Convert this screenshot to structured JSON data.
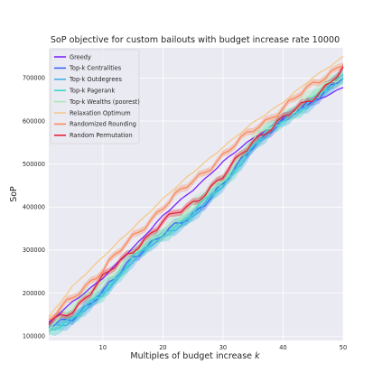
{
  "chart_data": {
    "type": "line",
    "title": "SoP objective for custom bailouts with budget increase rate 10000",
    "xlabel": "Multiples of budget increase k",
    "ylabel": "SoP",
    "xlim": [
      1,
      50
    ],
    "ylim": [
      90000,
      770000
    ],
    "xticks": [
      10,
      20,
      30,
      40,
      50
    ],
    "yticks": [
      100000,
      200000,
      300000,
      400000,
      500000,
      600000,
      700000
    ],
    "ytick_labels": [
      "100000",
      "200000",
      "300000",
      "400000",
      "500000",
      "600000",
      "700000"
    ],
    "grid": true,
    "legend_position": "top-left",
    "series": [
      {
        "name": "Greedy",
        "color": "#7b25ff",
        "band": 0,
        "x": [
          1,
          5,
          10,
          15,
          20,
          25,
          30,
          35,
          40,
          45,
          50
        ],
        "y": [
          130000,
          180000,
          235000,
          305000,
          380000,
          440000,
          505000,
          560000,
          605000,
          645000,
          678000
        ]
      },
      {
        "name": "Top-k Centralities",
        "color": "#3d6af5",
        "band": 10000,
        "x": [
          1,
          5,
          10,
          15,
          20,
          25,
          30,
          35,
          40,
          45,
          50
        ],
        "y": [
          120000,
          145000,
          200000,
          285000,
          335000,
          385000,
          450000,
          545000,
          600000,
          650000,
          700000
        ]
      },
      {
        "name": "Top-k Outdegrees",
        "color": "#3fb1e8",
        "band": 12000,
        "x": [
          1,
          5,
          10,
          15,
          20,
          25,
          30,
          35,
          40,
          45,
          50
        ],
        "y": [
          118000,
          140000,
          195000,
          280000,
          330000,
          382000,
          448000,
          542000,
          598000,
          648000,
          698000
        ]
      },
      {
        "name": "Top-k Pagerank",
        "color": "#3dd6c9",
        "band": 14000,
        "x": [
          1,
          5,
          10,
          15,
          20,
          25,
          30,
          35,
          40,
          45,
          50
        ],
        "y": [
          116000,
          142000,
          198000,
          283000,
          333000,
          388000,
          452000,
          546000,
          602000,
          652000,
          702000
        ]
      },
      {
        "name": "Top-k Wealths (poorest)",
        "color": "#a8e8b8",
        "band": 15000,
        "x": [
          1,
          5,
          10,
          15,
          20,
          25,
          30,
          35,
          40,
          45,
          50
        ],
        "y": [
          125000,
          165000,
          225000,
          290000,
          345000,
          400000,
          465000,
          555000,
          610000,
          660000,
          708000
        ]
      },
      {
        "name": "Relaxation Optimum",
        "color": "#f6c88a",
        "band": 0,
        "x": [
          1,
          5,
          10,
          15,
          20,
          25,
          30,
          35,
          40,
          45,
          50
        ],
        "y": [
          145000,
          215000,
          285000,
          350000,
          420000,
          480000,
          540000,
          595000,
          645000,
          700000,
          750000
        ]
      },
      {
        "name": "Randomized Rounding",
        "color": "#f98b5e",
        "band": 8000,
        "x": [
          1,
          5,
          10,
          15,
          20,
          25,
          30,
          35,
          40,
          45,
          50
        ],
        "y": [
          135000,
          190000,
          255000,
          330000,
          400000,
          460000,
          520000,
          580000,
          630000,
          685000,
          735000
        ]
      },
      {
        "name": "Random Permutation",
        "color": "#e8213a",
        "band": 8000,
        "x": [
          1,
          5,
          10,
          15,
          20,
          25,
          30,
          35,
          40,
          45,
          50
        ],
        "y": [
          128000,
          160000,
          235000,
          300000,
          365000,
          410000,
          470000,
          555000,
          605000,
          655000,
          720000
        ]
      }
    ]
  }
}
